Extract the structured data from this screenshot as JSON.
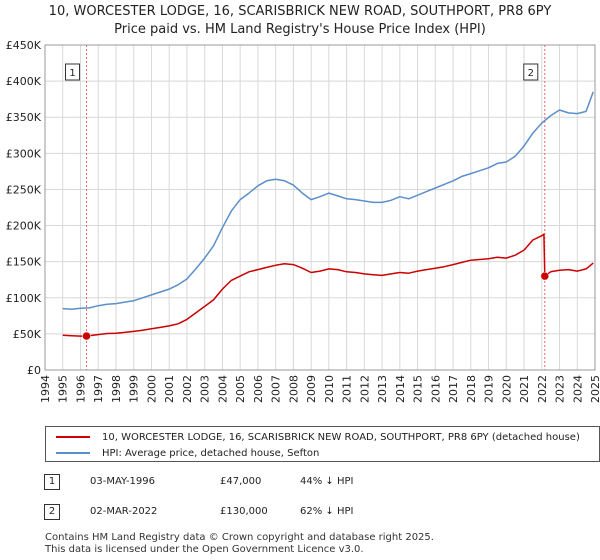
{
  "title_line1": "10, WORCESTER LODGE, 16, SCARISBRICK NEW ROAD, SOUTHPORT, PR8 6PY",
  "title_line2": "Price paid vs. HM Land Registry's House Price Index (HPI)",
  "colors": {
    "property": "#cc0000",
    "hpi": "#5b8fc9",
    "marker": "#ee6666"
  },
  "chart_data": {
    "type": "line",
    "xlim": [
      1994,
      2025
    ],
    "ylim": [
      0,
      450000
    ],
    "y_ticks": [
      {
        "value": 0,
        "label": "£0"
      },
      {
        "value": 50000,
        "label": "£50K"
      },
      {
        "value": 100000,
        "label": "£100K"
      },
      {
        "value": 150000,
        "label": "£150K"
      },
      {
        "value": 200000,
        "label": "£200K"
      },
      {
        "value": 250000,
        "label": "£250K"
      },
      {
        "value": 300000,
        "label": "£300K"
      },
      {
        "value": 350000,
        "label": "£350K"
      },
      {
        "value": 400000,
        "label": "£400K"
      },
      {
        "value": 450000,
        "label": "£450K"
      }
    ],
    "x_ticks": [
      "1994",
      "1995",
      "1996",
      "1997",
      "1998",
      "1999",
      "2000",
      "2001",
      "2002",
      "2003",
      "2004",
      "2005",
      "2006",
      "2007",
      "2008",
      "2009",
      "2010",
      "2011",
      "2012",
      "2013",
      "2014",
      "2015",
      "2016",
      "2017",
      "2018",
      "2019",
      "2020",
      "2021",
      "2022",
      "2023",
      "2024",
      "2025"
    ],
    "series": [
      {
        "name": "10, WORCESTER LODGE, 16, SCARISBRICK NEW ROAD, SOUTHPORT, PR8 6PY (detached house)",
        "x": [
          1995.0,
          1995.5,
          1996.0,
          1996.34,
          1996.8,
          1997.5,
          1998.0,
          1998.5,
          1999.0,
          1999.5,
          2000.0,
          2000.5,
          2001.0,
          2001.5,
          2002.0,
          2002.5,
          2003.0,
          2003.5,
          2004.0,
          2004.5,
          2005.0,
          2005.5,
          2006.0,
          2006.5,
          2007.0,
          2007.5,
          2008.0,
          2008.5,
          2009.0,
          2009.5,
          2010.0,
          2010.5,
          2011.0,
          2011.5,
          2012.0,
          2012.5,
          2013.0,
          2013.5,
          2014.0,
          2014.5,
          2015.0,
          2015.5,
          2016.0,
          2016.5,
          2017.0,
          2017.5,
          2018.0,
          2018.5,
          2019.0,
          2019.5,
          2020.0,
          2020.5,
          2021.0,
          2021.5,
          2022.0,
          2022.12,
          2022.17,
          2022.5,
          2023.0,
          2023.5,
          2024.0,
          2024.5,
          2024.9
        ],
        "y": [
          48000,
          47500,
          47000,
          47000,
          48500,
          50500,
          51000,
          52000,
          53500,
          55000,
          57000,
          59000,
          61000,
          64000,
          70000,
          79000,
          88000,
          97000,
          112000,
          124000,
          130000,
          136000,
          139000,
          142000,
          145000,
          147000,
          146000,
          141000,
          135000,
          137000,
          140000,
          139000,
          136000,
          135000,
          133000,
          132000,
          131000,
          133000,
          135000,
          134000,
          137000,
          139000,
          141000,
          143000,
          146000,
          149000,
          152000,
          153000,
          154000,
          156000,
          155000,
          159000,
          166000,
          180000,
          186000,
          188000,
          130000,
          136000,
          138000,
          139000,
          137000,
          140000,
          148000
        ]
      },
      {
        "name": "HPI: Average price, detached house, Sefton",
        "x": [
          1995.0,
          1995.5,
          1996.0,
          1996.5,
          1997.0,
          1997.5,
          1998.0,
          1998.5,
          1999.0,
          1999.5,
          2000.0,
          2000.5,
          2001.0,
          2001.5,
          2002.0,
          2002.5,
          2003.0,
          2003.5,
          2004.0,
          2004.5,
          2005.0,
          2005.5,
          2006.0,
          2006.5,
          2007.0,
          2007.5,
          2008.0,
          2008.5,
          2009.0,
          2009.5,
          2010.0,
          2010.5,
          2011.0,
          2011.5,
          2012.0,
          2012.5,
          2013.0,
          2013.5,
          2014.0,
          2014.5,
          2015.0,
          2015.5,
          2016.0,
          2016.5,
          2017.0,
          2017.5,
          2018.0,
          2018.5,
          2019.0,
          2019.5,
          2020.0,
          2020.5,
          2021.0,
          2021.5,
          2022.0,
          2022.5,
          2023.0,
          2023.5,
          2024.0,
          2024.5,
          2024.9
        ],
        "y": [
          85000,
          84000,
          85500,
          86000,
          89000,
          91000,
          92000,
          94000,
          96000,
          100000,
          104000,
          108000,
          112000,
          118000,
          126000,
          140000,
          155000,
          172000,
          197000,
          220000,
          236000,
          245000,
          255000,
          262000,
          264000,
          262000,
          256000,
          245000,
          236000,
          240000,
          245000,
          241000,
          237000,
          236000,
          234000,
          232000,
          232000,
          235000,
          240000,
          237000,
          242000,
          247000,
          252000,
          257000,
          262000,
          268000,
          272000,
          276000,
          280000,
          286000,
          288000,
          296000,
          310000,
          328000,
          342000,
          352000,
          360000,
          356000,
          355000,
          358000,
          385000
        ]
      }
    ],
    "sales": [
      {
        "num": "1",
        "x": 1996.34,
        "value": 47000
      },
      {
        "num": "2",
        "x": 2022.17,
        "value": 130000
      }
    ]
  },
  "legend": {
    "property_label": "10, WORCESTER LODGE, 16, SCARISBRICK NEW ROAD, SOUTHPORT, PR8 6PY (detached house)",
    "hpi_label": "HPI: Average price, detached house, Sefton"
  },
  "sales_table": [
    {
      "num": "1",
      "date": "03-MAY-1996",
      "price": "£47,000",
      "hpi": "44% ↓ HPI"
    },
    {
      "num": "2",
      "date": "02-MAR-2022",
      "price": "£130,000",
      "hpi": "62% ↓ HPI"
    }
  ],
  "footer_line1": "Contains HM Land Registry data © Crown copyright and database right 2025.",
  "footer_line2": "This data is licensed under the Open Government Licence v3.0."
}
